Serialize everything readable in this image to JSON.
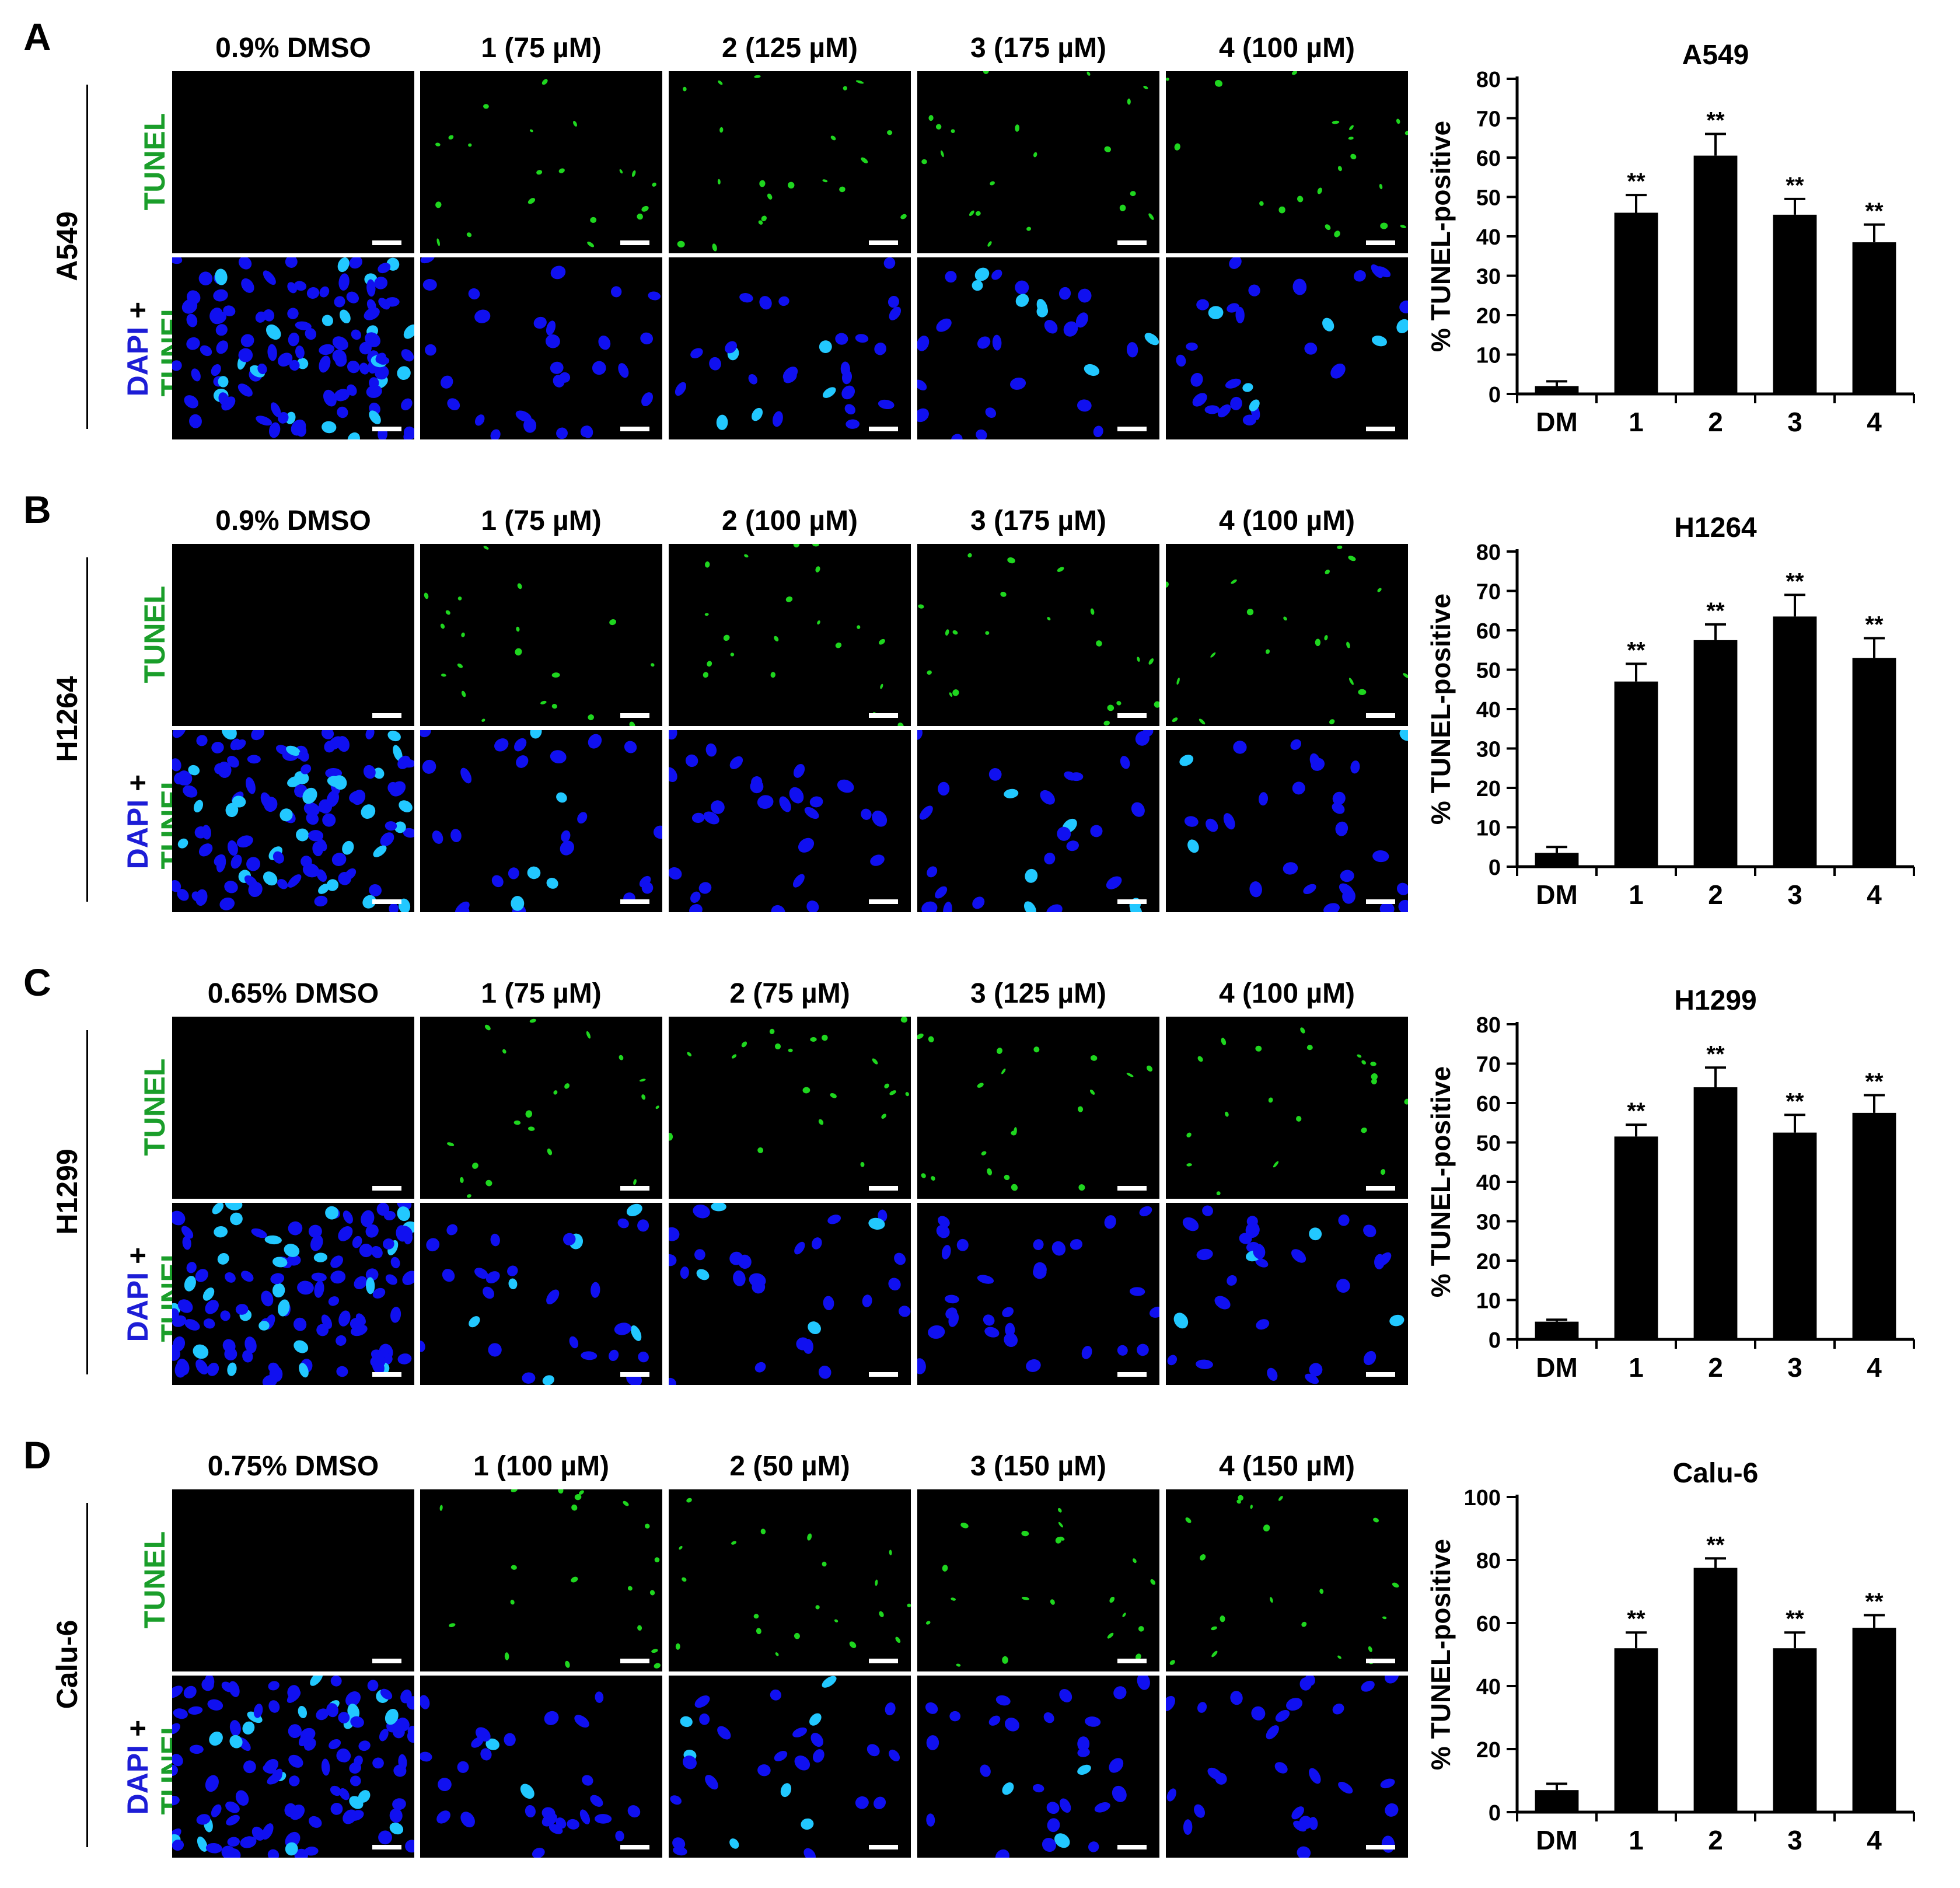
{
  "micrograph_rows": {
    "top": "TUNEL",
    "bottom_dapi": "DAPI",
    "bottom_plus": "+",
    "bottom_tunel": "TUNEL"
  },
  "panels": [
    {
      "letter": "A",
      "cell_line": "A549",
      "columns": [
        "0.9% DMSO",
        "1 (75 µM)",
        "2 (125 µM)",
        "3 (175 µM)",
        "4 (100 µM)"
      ]
    },
    {
      "letter": "B",
      "cell_line": "H1264",
      "columns": [
        "0.9% DMSO",
        "1 (75 µM)",
        "2 (100 µM)",
        "3 (175 µM)",
        "4 (100 µM)"
      ]
    },
    {
      "letter": "C",
      "cell_line": "H1299",
      "columns": [
        "0.65% DMSO",
        "1 (75 µM)",
        "2 (75 µM)",
        "3 (125 µM)",
        "4 (100 µM)"
      ]
    },
    {
      "letter": "D",
      "cell_line": "Calu-6",
      "columns": [
        "0.75% DMSO",
        "1 (100 µM)",
        "2 (50 µM)",
        "3 (150 µM)",
        "4 (150 µM)"
      ]
    }
  ],
  "colors": {
    "tunel": "#1a9e2a",
    "dapi": "#1d1dd6",
    "bar": "#000000"
  },
  "chart_data": [
    {
      "type": "bar",
      "title": "A549",
      "ylabel": "% TUNEL-positive",
      "categories": [
        "DM",
        "1",
        "2",
        "3",
        "4"
      ],
      "values": [
        2,
        46,
        60.5,
        45.5,
        38.5
      ],
      "errors": [
        1.2,
        4.5,
        5.5,
        4,
        4.5
      ],
      "significance": [
        "",
        "**",
        "**",
        "**",
        "**"
      ],
      "ylim": [
        0,
        80
      ],
      "yticks": [
        0,
        10,
        20,
        30,
        40,
        50,
        60,
        70,
        80
      ]
    },
    {
      "type": "bar",
      "title": "H1264",
      "ylabel": "% TUNEL-positive",
      "categories": [
        "DM",
        "1",
        "2",
        "3",
        "4"
      ],
      "values": [
        3.5,
        47,
        57.5,
        63.5,
        53
      ],
      "errors": [
        1.5,
        4.5,
        4,
        5.5,
        5
      ],
      "significance": [
        "",
        "**",
        "**",
        "**",
        "**"
      ],
      "ylim": [
        0,
        80
      ],
      "yticks": [
        0,
        10,
        20,
        30,
        40,
        50,
        60,
        70,
        80
      ]
    },
    {
      "type": "bar",
      "title": "H1299",
      "ylabel": "% TUNEL-positive",
      "categories": [
        "DM",
        "1",
        "2",
        "3",
        "4"
      ],
      "values": [
        4.5,
        51.5,
        64,
        52.5,
        57.5
      ],
      "errors": [
        0.5,
        3,
        5,
        4.5,
        4.5
      ],
      "significance": [
        "",
        "**",
        "**",
        "**",
        "**"
      ],
      "ylim": [
        0,
        80
      ],
      "yticks": [
        0,
        10,
        20,
        30,
        40,
        50,
        60,
        70,
        80
      ]
    },
    {
      "type": "bar",
      "title": "Calu-6",
      "ylabel": "% TUNEL-positive",
      "categories": [
        "DM",
        "1",
        "2",
        "3",
        "4"
      ],
      "values": [
        7,
        52,
        77.5,
        52,
        58.5
      ],
      "errors": [
        2,
        5,
        3,
        5,
        4
      ],
      "significance": [
        "",
        "**",
        "**",
        "**",
        "**"
      ],
      "ylim": [
        0,
        100
      ],
      "yticks": [
        0,
        20,
        40,
        60,
        80,
        100
      ]
    }
  ]
}
